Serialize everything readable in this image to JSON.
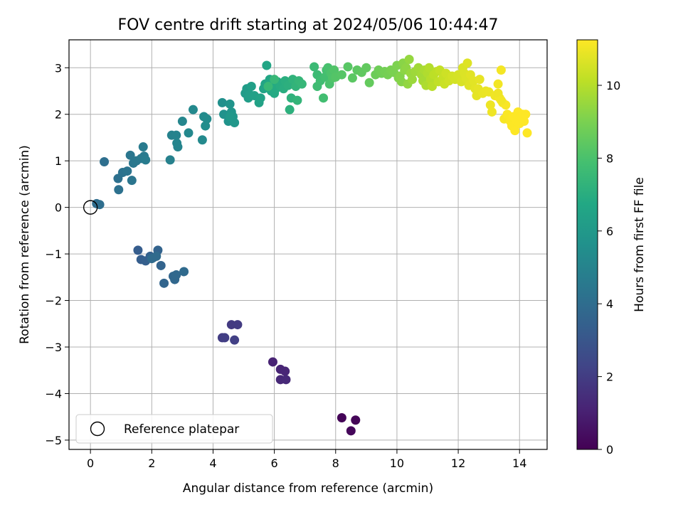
{
  "chart_data": {
    "type": "scatter",
    "title": "FOV centre drift starting at 2024/05/06 10:44:47",
    "xlabel": "Angular distance from reference (arcmin)",
    "ylabel": "Rotation from reference (arcmin)",
    "xlim": [
      -0.7,
      14.9
    ],
    "ylim": [
      -5.2,
      3.6
    ],
    "xticks": [
      0,
      2,
      4,
      6,
      8,
      10,
      12,
      14
    ],
    "yticks": [
      -5,
      -4,
      -3,
      -2,
      -1,
      0,
      1,
      2,
      3
    ],
    "grid": true,
    "legend": {
      "placement": "bottom-left",
      "entries": [
        "Reference platepar"
      ]
    },
    "reference_point": {
      "x": 0,
      "y": 0,
      "label": "Reference platepar"
    },
    "colorbar": {
      "label": "Hours from first FF file",
      "colormap": "viridis",
      "range": [
        0,
        11.25
      ],
      "ticks": [
        0,
        2,
        4,
        6,
        8,
        10
      ]
    },
    "points": [
      [
        8.2,
        -4.52,
        0.1
      ],
      [
        8.65,
        -4.57,
        0.15
      ],
      [
        8.5,
        -4.8,
        0.2
      ],
      [
        5.95,
        -3.32,
        1.1
      ],
      [
        6.2,
        -3.48,
        1.15
      ],
      [
        6.35,
        -3.52,
        1.2
      ],
      [
        6.2,
        -3.7,
        1.25
      ],
      [
        6.38,
        -3.7,
        1.3
      ],
      [
        4.6,
        -2.52,
        1.9
      ],
      [
        4.8,
        -2.52,
        1.95
      ],
      [
        4.3,
        -2.8,
        2.0
      ],
      [
        4.38,
        -2.8,
        2.05
      ],
      [
        4.7,
        -2.85,
        2.1
      ],
      [
        1.55,
        -0.92,
        3.3
      ],
      [
        1.65,
        -1.12,
        3.35
      ],
      [
        1.8,
        -1.15,
        3.4
      ],
      [
        1.95,
        -1.05,
        3.45
      ],
      [
        2.05,
        -1.08,
        3.5
      ],
      [
        2.2,
        -0.92,
        3.55
      ],
      [
        2.3,
        -1.25,
        3.6
      ],
      [
        2.4,
        -1.63,
        3.65
      ],
      [
        2.7,
        -1.48,
        3.7
      ],
      [
        2.75,
        -1.55,
        3.75
      ],
      [
        2.8,
        -1.45,
        3.8
      ],
      [
        3.05,
        -1.38,
        3.85
      ],
      [
        2.0,
        -1.1,
        3.9
      ],
      [
        2.15,
        -1.05,
        3.92
      ],
      [
        0.2,
        0.08,
        4.0
      ],
      [
        0.3,
        0.06,
        4.05
      ],
      [
        0.45,
        0.98,
        4.1
      ],
      [
        0.9,
        0.62,
        4.15
      ],
      [
        0.92,
        0.38,
        4.2
      ],
      [
        1.05,
        0.75,
        4.25
      ],
      [
        1.2,
        0.78,
        4.3
      ],
      [
        1.35,
        0.58,
        4.35
      ],
      [
        1.3,
        1.12,
        4.4
      ],
      [
        1.4,
        0.95,
        4.45
      ],
      [
        1.5,
        1.0,
        4.5
      ],
      [
        1.65,
        1.05,
        4.55
      ],
      [
        1.75,
        1.1,
        4.6
      ],
      [
        1.72,
        1.3,
        4.65
      ],
      [
        1.8,
        1.02,
        4.7
      ],
      [
        2.6,
        1.02,
        4.9
      ],
      [
        2.65,
        1.55,
        4.95
      ],
      [
        2.8,
        1.55,
        5.0
      ],
      [
        2.85,
        1.3,
        5.05
      ],
      [
        2.82,
        1.38,
        5.1
      ],
      [
        3.0,
        1.85,
        5.15
      ],
      [
        3.2,
        1.6,
        5.2
      ],
      [
        3.35,
        2.1,
        5.25
      ],
      [
        3.65,
        1.45,
        5.3
      ],
      [
        3.7,
        1.95,
        5.35
      ],
      [
        3.8,
        1.9,
        5.4
      ],
      [
        3.75,
        1.75,
        5.45
      ],
      [
        4.3,
        2.25,
        5.6
      ],
      [
        4.35,
        2.0,
        5.65
      ],
      [
        4.5,
        1.85,
        5.7
      ],
      [
        4.55,
        2.22,
        5.75
      ],
      [
        4.6,
        2.05,
        5.8
      ],
      [
        4.65,
        1.95,
        5.85
      ],
      [
        4.7,
        1.82,
        5.9
      ],
      [
        4.55,
        1.95,
        5.95
      ],
      [
        5.05,
        2.45,
        6.1
      ],
      [
        5.1,
        2.55,
        6.15
      ],
      [
        5.15,
        2.35,
        6.2
      ],
      [
        5.2,
        2.42,
        6.25
      ],
      [
        5.25,
        2.6,
        6.3
      ],
      [
        5.35,
        2.4,
        6.35
      ],
      [
        5.5,
        2.25,
        6.4
      ],
      [
        5.55,
        2.35,
        6.45
      ],
      [
        5.65,
        2.55,
        6.5
      ],
      [
        5.7,
        2.65,
        6.55
      ],
      [
        5.75,
        3.05,
        6.6
      ],
      [
        5.85,
        2.75,
        6.65
      ],
      [
        5.9,
        2.5,
        6.7
      ],
      [
        5.95,
        2.65,
        6.75
      ],
      [
        6.0,
        2.45,
        6.8
      ],
      [
        6.05,
        2.55,
        6.85
      ],
      [
        6.1,
        2.7,
        6.9
      ],
      [
        6.2,
        2.6,
        6.95
      ],
      [
        6.3,
        2.55,
        7.0
      ],
      [
        6.35,
        2.72,
        7.05
      ],
      [
        6.45,
        2.62,
        7.1
      ],
      [
        6.5,
        2.1,
        7.15
      ],
      [
        6.55,
        2.35,
        7.2
      ],
      [
        6.6,
        2.75,
        7.25
      ],
      [
        6.7,
        2.6,
        7.3
      ],
      [
        6.75,
        2.3,
        7.35
      ],
      [
        6.8,
        2.72,
        7.4
      ],
      [
        6.9,
        2.65,
        7.45
      ],
      [
        6.0,
        2.75,
        7.5
      ],
      [
        5.8,
        2.6,
        7.52
      ],
      [
        7.3,
        3.02,
        7.6
      ],
      [
        7.4,
        2.85,
        7.65
      ],
      [
        7.4,
        2.6,
        7.7
      ],
      [
        7.5,
        2.72,
        7.75
      ],
      [
        7.6,
        2.35,
        7.8
      ],
      [
        7.65,
        2.8,
        7.85
      ],
      [
        7.7,
        2.95,
        7.9
      ],
      [
        7.75,
        3.0,
        7.95
      ],
      [
        7.8,
        2.65,
        8.0
      ],
      [
        7.85,
        2.88,
        8.05
      ],
      [
        7.9,
        2.78,
        8.1
      ],
      [
        7.95,
        2.95,
        8.15
      ],
      [
        8.0,
        2.8,
        8.2
      ],
      [
        8.2,
        2.85,
        8.25
      ],
      [
        8.4,
        3.02,
        8.3
      ],
      [
        8.55,
        2.78,
        8.35
      ],
      [
        8.7,
        2.95,
        8.4
      ],
      [
        8.85,
        2.9,
        8.45
      ],
      [
        9.0,
        3.0,
        8.5
      ],
      [
        9.1,
        2.68,
        8.55
      ],
      [
        9.3,
        2.85,
        8.7
      ],
      [
        9.4,
        2.95,
        8.75
      ],
      [
        9.5,
        2.88,
        8.8
      ],
      [
        9.6,
        2.92,
        8.85
      ],
      [
        9.7,
        2.85,
        8.9
      ],
      [
        9.8,
        2.95,
        8.95
      ],
      [
        9.9,
        2.9,
        9.0
      ],
      [
        10.0,
        3.05,
        9.05
      ],
      [
        10.05,
        2.78,
        9.1
      ],
      [
        10.1,
        2.82,
        9.15
      ],
      [
        10.15,
        2.7,
        9.2
      ],
      [
        10.2,
        3.1,
        9.25
      ],
      [
        10.25,
        2.95,
        9.3
      ],
      [
        10.3,
        3.0,
        9.35
      ],
      [
        10.35,
        2.65,
        9.4
      ],
      [
        10.4,
        3.18,
        9.45
      ],
      [
        10.45,
        2.88,
        9.5
      ],
      [
        10.5,
        2.75,
        9.55
      ],
      [
        10.6,
        2.92,
        9.6
      ],
      [
        10.7,
        3.0,
        9.65
      ],
      [
        10.8,
        2.85,
        9.7
      ],
      [
        10.85,
        2.72,
        9.75
      ],
      [
        10.9,
        2.95,
        9.8
      ],
      [
        10.95,
        2.62,
        9.85
      ],
      [
        11.0,
        2.88,
        9.9
      ],
      [
        11.05,
        3.0,
        9.95
      ],
      [
        11.1,
        2.75,
        10.0
      ],
      [
        11.15,
        2.6,
        10.05
      ],
      [
        11.2,
        2.85,
        10.1
      ],
      [
        11.3,
        2.92,
        10.15
      ],
      [
        11.35,
        2.7,
        10.2
      ],
      [
        11.4,
        2.95,
        10.25
      ],
      [
        11.5,
        2.78,
        10.3
      ],
      [
        11.55,
        2.65,
        10.35
      ],
      [
        11.6,
        2.88,
        10.4
      ],
      [
        11.7,
        2.72,
        10.45
      ],
      [
        11.8,
        2.82,
        10.5
      ],
      [
        11.9,
        2.75,
        10.52
      ],
      [
        12.0,
        2.85,
        10.55
      ],
      [
        12.1,
        2.7,
        10.6
      ],
      [
        12.15,
        3.0,
        10.62
      ],
      [
        12.2,
        2.88,
        10.65
      ],
      [
        12.25,
        2.78,
        10.67
      ],
      [
        12.3,
        3.1,
        10.7
      ],
      [
        12.35,
        2.62,
        10.72
      ],
      [
        12.4,
        2.85,
        10.75
      ],
      [
        12.5,
        2.72,
        10.77
      ],
      [
        12.55,
        2.55,
        10.8
      ],
      [
        12.6,
        2.4,
        10.82
      ],
      [
        12.65,
        2.55,
        10.85
      ],
      [
        12.7,
        2.75,
        10.87
      ],
      [
        12.8,
        2.45,
        10.9
      ],
      [
        12.9,
        2.5,
        10.92
      ],
      [
        13.0,
        2.48,
        10.95
      ],
      [
        13.05,
        2.2,
        10.97
      ],
      [
        13.1,
        2.05,
        11.0
      ],
      [
        13.2,
        2.4,
        11.02
      ],
      [
        13.3,
        2.65,
        11.05
      ],
      [
        13.35,
        2.35,
        11.07
      ],
      [
        13.4,
        2.95,
        11.1
      ],
      [
        13.45,
        2.25,
        11.12
      ],
      [
        13.5,
        1.9,
        11.15
      ],
      [
        13.55,
        2.2,
        11.17
      ],
      [
        13.6,
        2.0,
        11.2
      ],
      [
        13.7,
        1.85,
        11.22
      ],
      [
        13.75,
        1.75,
        11.24
      ],
      [
        13.8,
        1.95,
        11.25
      ],
      [
        13.85,
        1.65,
        11.25
      ],
      [
        13.9,
        1.85,
        11.25
      ],
      [
        13.95,
        2.05,
        11.25
      ],
      [
        14.0,
        1.8,
        11.25
      ],
      [
        14.05,
        1.95,
        11.25
      ],
      [
        14.1,
        2.0,
        11.25
      ],
      [
        14.15,
        1.85,
        11.25
      ],
      [
        14.2,
        2.0,
        11.25
      ],
      [
        14.25,
        1.6,
        11.25
      ],
      [
        13.3,
        2.45,
        11.0
      ],
      [
        13.4,
        2.3,
        11.05
      ]
    ]
  }
}
